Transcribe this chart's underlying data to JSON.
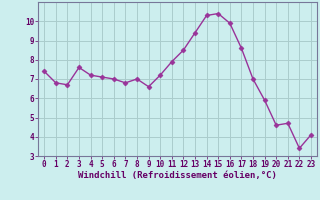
{
  "x": [
    0,
    1,
    2,
    3,
    4,
    5,
    6,
    7,
    8,
    9,
    10,
    11,
    12,
    13,
    14,
    15,
    16,
    17,
    18,
    19,
    20,
    21,
    22,
    23
  ],
  "y": [
    7.4,
    6.8,
    6.7,
    7.6,
    7.2,
    7.1,
    7.0,
    6.8,
    7.0,
    6.6,
    7.2,
    7.9,
    8.5,
    9.4,
    10.3,
    10.4,
    9.9,
    8.6,
    7.0,
    5.9,
    4.6,
    4.7,
    3.4,
    4.1
  ],
  "line_color": "#993399",
  "marker": "D",
  "marker_size": 2.5,
  "bg_color": "#cceeee",
  "grid_color": "#aacccc",
  "xlabel": "Windchill (Refroidissement éolien,°C)",
  "ylim": [
    3,
    11
  ],
  "xlim": [
    -0.5,
    23.5
  ],
  "yticks": [
    3,
    4,
    5,
    6,
    7,
    8,
    9,
    10
  ],
  "xticks": [
    0,
    1,
    2,
    3,
    4,
    5,
    6,
    7,
    8,
    9,
    10,
    11,
    12,
    13,
    14,
    15,
    16,
    17,
    18,
    19,
    20,
    21,
    22,
    23
  ],
  "font_color": "#660066",
  "tick_fontsize": 5.5,
  "label_fontsize": 6.5,
  "spine_color": "#777799",
  "line_width": 1.0
}
